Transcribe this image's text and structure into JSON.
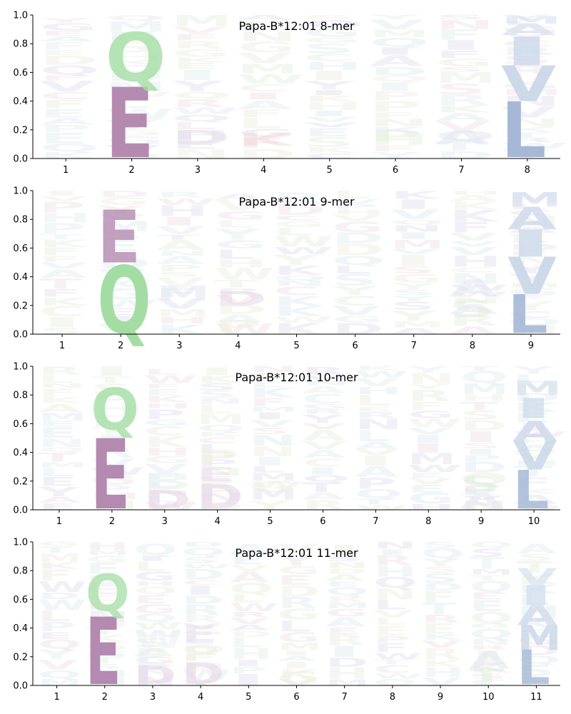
{
  "colors": {
    "E": "#b48ab0",
    "Q": "#a4dda4",
    "L": "#a6b8d6",
    "V": "#c6d4e6",
    "I": "#cad8ea",
    "A": "#cad6ea",
    "M": "#d0dcec",
    "D": "#e4d6e6",
    "faint": "#e8eef2"
  },
  "chart_data": [
    {
      "type": "sequence-logo",
      "title": "Papa-B*12:01 8-mer",
      "ylim": [
        0,
        1
      ],
      "yticks": [
        "0.0",
        "0.2",
        "0.4",
        "0.6",
        "0.8",
        "1.0"
      ],
      "positions": [
        "1",
        "2",
        "3",
        "4",
        "5",
        "6",
        "7",
        "8"
      ],
      "letters": [
        {
          "pos": 2,
          "letter": "E",
          "y0": 0.01,
          "y1": 0.5,
          "color": "#b48ab0",
          "opacity": 1
        },
        {
          "pos": 2,
          "letter": "Q",
          "y0": 0.54,
          "y1": 0.88,
          "color": "#a4dda4",
          "opacity": 0.8
        },
        {
          "pos": 8,
          "letter": "L",
          "y0": 0.01,
          "y1": 0.4,
          "color": "#a6b8d6",
          "opacity": 1
        },
        {
          "pos": 8,
          "letter": "V",
          "y0": 0.4,
          "y1": 0.65,
          "color": "#c6d4e6",
          "opacity": 0.85
        },
        {
          "pos": 8,
          "letter": "I",
          "y0": 0.65,
          "y1": 0.85,
          "color": "#cad8ea",
          "opacity": 0.8
        },
        {
          "pos": 8,
          "letter": "A",
          "y0": 0.86,
          "y1": 0.94,
          "color": "#d0dcec",
          "opacity": 0.6
        },
        {
          "pos": 8,
          "letter": "M",
          "y0": 0.94,
          "y1": 0.99,
          "color": "#d0dcec",
          "opacity": 0.5
        },
        {
          "pos": 3,
          "letter": "D",
          "y0": 0.1,
          "y1": 0.2,
          "color": "#e4d6e6",
          "opacity": 0.5
        },
        {
          "pos": 4,
          "letter": "K",
          "y0": 0.09,
          "y1": 0.18,
          "color": "#f0d0d0",
          "opacity": 0.45
        },
        {
          "pos": 6,
          "letter": "P",
          "y0": 0.12,
          "y1": 0.2,
          "color": "#e6eedc",
          "opacity": 0.5
        },
        {
          "pos": 7,
          "letter": "A",
          "y0": 0.1,
          "y1": 0.2,
          "color": "#dde6f0",
          "opacity": 0.5
        }
      ]
    },
    {
      "type": "sequence-logo",
      "title": "Papa-B*12:01 9-mer",
      "ylim": [
        0,
        1
      ],
      "yticks": [
        "0.0",
        "0.2",
        "0.4",
        "0.6",
        "0.8",
        "1.0"
      ],
      "positions": [
        "1",
        "2",
        "3",
        "4",
        "5",
        "6",
        "7",
        "8",
        "9"
      ],
      "letters": [
        {
          "pos": 2,
          "letter": "Q",
          "y0": 0.01,
          "y1": 0.48,
          "color": "#a4dda4",
          "opacity": 1
        },
        {
          "pos": 2,
          "letter": "E",
          "y0": 0.5,
          "y1": 0.87,
          "color": "#b48ab0",
          "opacity": 0.8
        },
        {
          "pos": 9,
          "letter": "L",
          "y0": 0.01,
          "y1": 0.28,
          "color": "#a6b8d6",
          "opacity": 0.9
        },
        {
          "pos": 9,
          "letter": "V",
          "y0": 0.28,
          "y1": 0.54,
          "color": "#c6d4e6",
          "opacity": 0.85
        },
        {
          "pos": 9,
          "letter": "I",
          "y0": 0.54,
          "y1": 0.73,
          "color": "#cad8ea",
          "opacity": 0.8
        },
        {
          "pos": 9,
          "letter": "A",
          "y0": 0.73,
          "y1": 0.89,
          "color": "#cad6ea",
          "opacity": 0.75
        },
        {
          "pos": 9,
          "letter": "M",
          "y0": 0.89,
          "y1": 0.99,
          "color": "#d0dcec",
          "opacity": 0.6
        },
        {
          "pos": 4,
          "letter": "D",
          "y0": 0.2,
          "y1": 0.3,
          "color": "#e4d6e6",
          "opacity": 0.5
        },
        {
          "pos": 4,
          "letter": "P",
          "y0": 0.01,
          "y1": 0.1,
          "color": "#eef0dc",
          "opacity": 0.5
        },
        {
          "pos": 3,
          "letter": "M",
          "y0": 0.24,
          "y1": 0.34,
          "color": "#dde6f0",
          "opacity": 0.5
        },
        {
          "pos": 8,
          "letter": "S",
          "y0": 0.12,
          "y1": 0.24,
          "color": "#dceedc",
          "opacity": 0.5
        },
        {
          "pos": 8,
          "letter": "A",
          "y0": 0.26,
          "y1": 0.38,
          "color": "#dde6f0",
          "opacity": 0.5
        }
      ]
    },
    {
      "type": "sequence-logo",
      "title": "Papa-B*12:01 10-mer",
      "ylim": [
        0,
        1
      ],
      "yticks": [
        "0.0",
        "0.2",
        "0.4",
        "0.6",
        "0.8",
        "1.0"
      ],
      "positions": [
        "1",
        "2",
        "3",
        "4",
        "5",
        "6",
        "7",
        "8",
        "9",
        "10"
      ],
      "letters": [
        {
          "pos": 2,
          "letter": "E",
          "y0": 0.01,
          "y1": 0.5,
          "color": "#b48ab0",
          "opacity": 1
        },
        {
          "pos": 2,
          "letter": "Q",
          "y0": 0.56,
          "y1": 0.85,
          "color": "#a4dda4",
          "opacity": 0.8
        },
        {
          "pos": 10,
          "letter": "L",
          "y0": 0.01,
          "y1": 0.28,
          "color": "#a6b8d6",
          "opacity": 0.85
        },
        {
          "pos": 10,
          "letter": "V",
          "y0": 0.28,
          "y1": 0.48,
          "color": "#c6d4e6",
          "opacity": 0.8
        },
        {
          "pos": 10,
          "letter": "A",
          "y0": 0.48,
          "y1": 0.62,
          "color": "#cad6ea",
          "opacity": 0.75
        },
        {
          "pos": 10,
          "letter": "I",
          "y0": 0.64,
          "y1": 0.78,
          "color": "#cad8ea",
          "opacity": 0.7
        },
        {
          "pos": 10,
          "letter": "M",
          "y0": 0.8,
          "y1": 0.9,
          "color": "#d0dcec",
          "opacity": 0.6
        },
        {
          "pos": 3,
          "letter": "D",
          "y0": 0.01,
          "y1": 0.14,
          "color": "#e4d6e6",
          "opacity": 0.6
        },
        {
          "pos": 3,
          "letter": "E",
          "y0": 0.15,
          "y1": 0.26,
          "color": "#e6eef4",
          "opacity": 0.5
        },
        {
          "pos": 4,
          "letter": "D",
          "y0": 0.01,
          "y1": 0.18,
          "color": "#e4d6e6",
          "opacity": 0.6
        },
        {
          "pos": 4,
          "letter": "E",
          "y0": 0.2,
          "y1": 0.3,
          "color": "#e8dcea",
          "opacity": 0.5
        },
        {
          "pos": 4,
          "letter": "P",
          "y0": 0.32,
          "y1": 0.42,
          "color": "#eef0dc",
          "opacity": 0.5
        },
        {
          "pos": 5,
          "letter": "G",
          "y0": 0.12,
          "y1": 0.2,
          "color": "#eef0dc",
          "opacity": 0.5
        },
        {
          "pos": 9,
          "letter": "S",
          "y0": 0.12,
          "y1": 0.24,
          "color": "#dceedc",
          "opacity": 0.5
        },
        {
          "pos": 9,
          "letter": "A",
          "y0": 0.01,
          "y1": 0.12,
          "color": "#dde6f0",
          "opacity": 0.5
        }
      ]
    },
    {
      "type": "sequence-logo",
      "title": "Papa-B*12:01 11-mer",
      "ylim": [
        0,
        1
      ],
      "yticks": [
        "0.0",
        "0.2",
        "0.4",
        "0.6",
        "0.8",
        "1.0"
      ],
      "positions": [
        "1",
        "2",
        "3",
        "4",
        "5",
        "6",
        "7",
        "8",
        "9",
        "10",
        "11"
      ],
      "letters": [
        {
          "pos": 2,
          "letter": "E",
          "y0": 0.01,
          "y1": 0.48,
          "color": "#b48ab0",
          "opacity": 1
        },
        {
          "pos": 2,
          "letter": "Q",
          "y0": 0.52,
          "y1": 0.78,
          "color": "#a4dda4",
          "opacity": 0.75
        },
        {
          "pos": 11,
          "letter": "L",
          "y0": 0.01,
          "y1": 0.25,
          "color": "#a6b8d6",
          "opacity": 0.8
        },
        {
          "pos": 11,
          "letter": "M",
          "y0": 0.25,
          "y1": 0.42,
          "color": "#c6d4e6",
          "opacity": 0.75
        },
        {
          "pos": 11,
          "letter": "A",
          "y0": 0.42,
          "y1": 0.56,
          "color": "#cad6ea",
          "opacity": 0.7
        },
        {
          "pos": 11,
          "letter": "I",
          "y0": 0.56,
          "y1": 0.7,
          "color": "#cad8ea",
          "opacity": 0.65
        },
        {
          "pos": 11,
          "letter": "V",
          "y0": 0.7,
          "y1": 0.82,
          "color": "#d0dcec",
          "opacity": 0.6
        },
        {
          "pos": 3,
          "letter": "D",
          "y0": 0.01,
          "y1": 0.14,
          "color": "#e4d6e6",
          "opacity": 0.6
        },
        {
          "pos": 3,
          "letter": "E",
          "y0": 0.14,
          "y1": 0.26,
          "color": "#e6eef4",
          "opacity": 0.5
        },
        {
          "pos": 3,
          "letter": "W",
          "y0": 0.26,
          "y1": 0.38,
          "color": "#eceef6",
          "opacity": 0.5
        },
        {
          "pos": 4,
          "letter": "D",
          "y0": 0.01,
          "y1": 0.16,
          "color": "#e4d6e6",
          "opacity": 0.6
        },
        {
          "pos": 4,
          "letter": "P",
          "y0": 0.18,
          "y1": 0.28,
          "color": "#eef0dc",
          "opacity": 0.5
        },
        {
          "pos": 4,
          "letter": "E",
          "y0": 0.3,
          "y1": 0.42,
          "color": "#e8dcea",
          "opacity": 0.5
        },
        {
          "pos": 6,
          "letter": "G",
          "y0": 0.01,
          "y1": 0.1,
          "color": "#eef0dc",
          "opacity": 0.5
        },
        {
          "pos": 10,
          "letter": "T",
          "y0": 0.01,
          "y1": 0.12,
          "color": "#dceedc",
          "opacity": 0.5
        },
        {
          "pos": 10,
          "letter": "A",
          "y0": 0.12,
          "y1": 0.24,
          "color": "#dde6f0",
          "opacity": 0.5
        }
      ]
    }
  ]
}
